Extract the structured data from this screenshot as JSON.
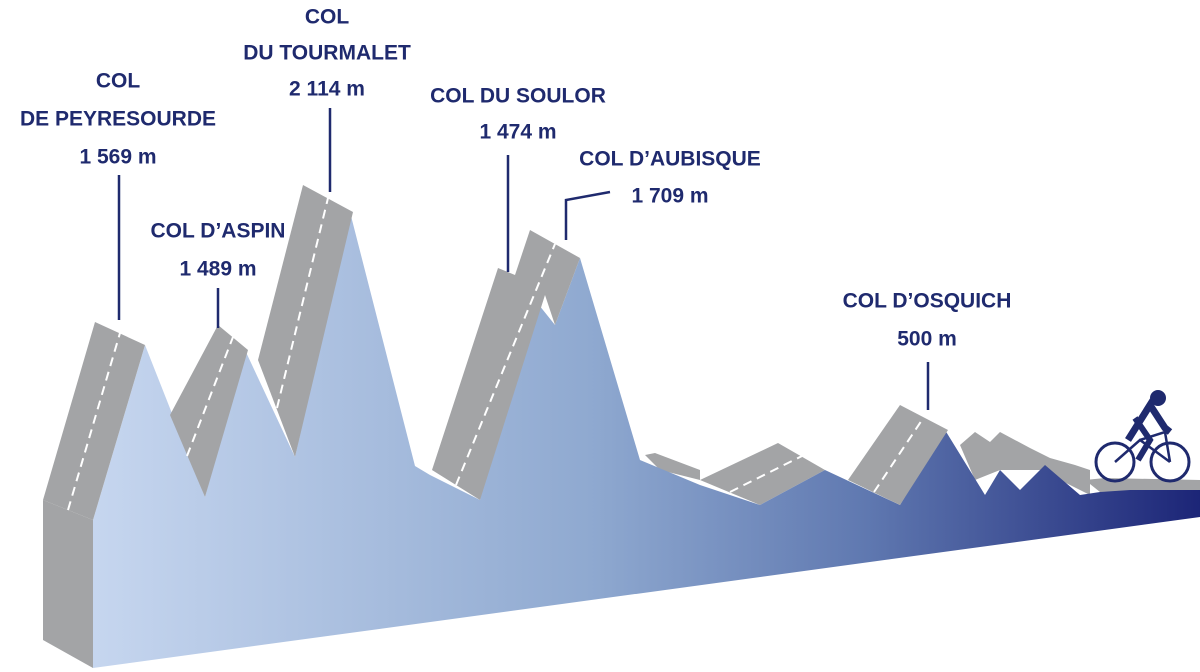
{
  "cols": [
    {
      "name": [
        "COL",
        "DE PEYRESOURDE"
      ],
      "altitude": "1 569 m"
    },
    {
      "name": [
        "COL D’ASPIN"
      ],
      "altitude": "1 489 m"
    },
    {
      "name": [
        "COL",
        "DU TOURMALET"
      ],
      "altitude": "2 114 m"
    },
    {
      "name": [
        "COL DU SOULOR"
      ],
      "altitude": "1 474 m"
    },
    {
      "name": [
        "COL D’AUBISQUE"
      ],
      "altitude": "1 709 m"
    },
    {
      "name": [
        "COL D’OSQUICH"
      ],
      "altitude": "500 m"
    }
  ]
}
